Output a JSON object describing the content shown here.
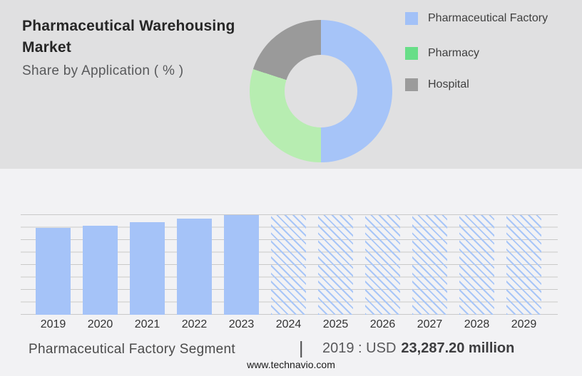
{
  "header": {
    "title_lines": [
      "Pharmaceutical Warehousing",
      "Market"
    ],
    "subtitle": "Share by Application ( % )"
  },
  "chart_data": [
    {
      "type": "pie",
      "subtype": "donut",
      "title": "Share by Application ( % )",
      "legend_position": "right",
      "slices": [
        {
          "label": "Pharmaceutical Factory",
          "value_pct": 50,
          "color": "#a6c4f8",
          "legend_color": "#a2c1f7"
        },
        {
          "label": "Pharmacy",
          "value_pct": 30,
          "color": "#b7edb1",
          "legend_color": "#68de88"
        },
        {
          "label": "Hospital",
          "value_pct": 20,
          "color": "#9a9a9a",
          "legend_color": "#9b9b9b"
        }
      ]
    },
    {
      "type": "bar",
      "title": "Pharmaceutical Factory Segment",
      "categories": [
        "2019",
        "2020",
        "2021",
        "2022",
        "2023",
        "2024",
        "2025",
        "2026",
        "2027",
        "2028",
        "2029"
      ],
      "series": [
        {
          "name": "Pharmaceutical Factory",
          "values_pct_of_max": [
            87,
            89.5,
            93,
            96.5,
            100,
            100,
            100,
            100,
            100,
            100,
            100
          ]
        }
      ],
      "bar_styles": [
        "solid",
        "solid",
        "solid",
        "solid",
        "solid",
        "hatched",
        "hatched",
        "hatched",
        "hatched",
        "hatched",
        "hatched"
      ],
      "known_value": {
        "year": "2019",
        "amount": "USD 23,287.20 million"
      },
      "bar_color": "#a5c3f8",
      "hatch_color": "#a8c6f8",
      "gridline_color": "#c9c9c9",
      "gridline_count": 9,
      "xlabel": "",
      "ylabel": ""
    }
  ],
  "caption": {
    "segment_label": "Pharmaceutical Factory Segment",
    "separator": "|",
    "value_prefix": "2019 : USD",
    "value_bold": "23,287.20 million"
  },
  "footer": {
    "url": "www.technavio.com"
  },
  "colors": {
    "top_bg": "#e0e0e1",
    "bottom_bg": "#f2f2f4",
    "title_text": "#262626",
    "subtitle_text": "#58595b"
  }
}
